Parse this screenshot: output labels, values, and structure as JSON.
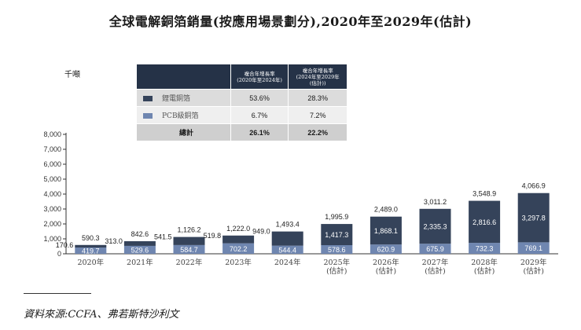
{
  "title": "全球電解銅箔銷量(按應用場景劃分),2020年至2029年(估計)",
  "unit": "千噸",
  "source": "資料來源:CCFA、弗若斯特沙利文",
  "colors": {
    "battery": "#35435a",
    "pcb": "#6f86b0",
    "header": "#253247"
  },
  "cagr_table": {
    "header_1": "複合年增長率\n(2020年至2024年)",
    "header_2": "複合年增長率\n(2024年至2029年\n(估計))",
    "rows": [
      {
        "label": "鋰電銅箔",
        "cagr_1": "53.6%",
        "cagr_2": "28.3%"
      },
      {
        "label": "PCB級銅箔",
        "cagr_1": "6.7%",
        "cagr_2": "7.2%"
      }
    ],
    "total": {
      "label": "總計",
      "cagr_1": "26.1%",
      "cagr_2": "22.2%"
    }
  },
  "chart_data": {
    "type": "bar",
    "stacked": true,
    "title": "全球電解銅箔銷量(按應用場景劃分),2020年至2029年(估計)",
    "ylabel": "千噸",
    "ylim": [
      0,
      8000
    ],
    "yticks": [
      "0",
      "1,000",
      "2,000",
      "3,000",
      "4,000",
      "5,000",
      "6,000",
      "7,000",
      "8,000"
    ],
    "categories": [
      "2020年",
      "2021年",
      "2022年",
      "2023年",
      "2024年",
      "2025年\n(估計)",
      "2026年\n(估計)",
      "2027年\n(估計)",
      "2028年\n(估計)",
      "2029年\n(估計)"
    ],
    "series": [
      {
        "name": "PCB級銅箔",
        "values": [
          419.7,
          529.6,
          584.7,
          702.2,
          544.4,
          578.6,
          620.9,
          675.9,
          732.3,
          769.1
        ]
      },
      {
        "name": "鋰電銅箔",
        "values": [
          170.6,
          313.0,
          541.5,
          519.8,
          949.0,
          1417.3,
          1868.1,
          2335.3,
          2816.6,
          3297.8
        ]
      }
    ],
    "series_labels": {
      "pcb": [
        "419.7",
        "529.6",
        "584.7",
        "702.2",
        "544.4",
        "578.6",
        "620.9",
        "675.9",
        "732.3",
        "769.1"
      ],
      "battery": [
        "170.6",
        "313.0",
        "541.5",
        "519.8",
        "949.0",
        "1,417.3",
        "1,868.1",
        "2,335.3",
        "2,816.6",
        "3,297.8"
      ]
    },
    "totals": [
      "590.3",
      "842.6",
      "1,126.2",
      "1,222.0",
      "1,493.4",
      "1,995.9",
      "2,489.0",
      "3,011.2",
      "3,548.9",
      "4,066.9"
    ]
  }
}
